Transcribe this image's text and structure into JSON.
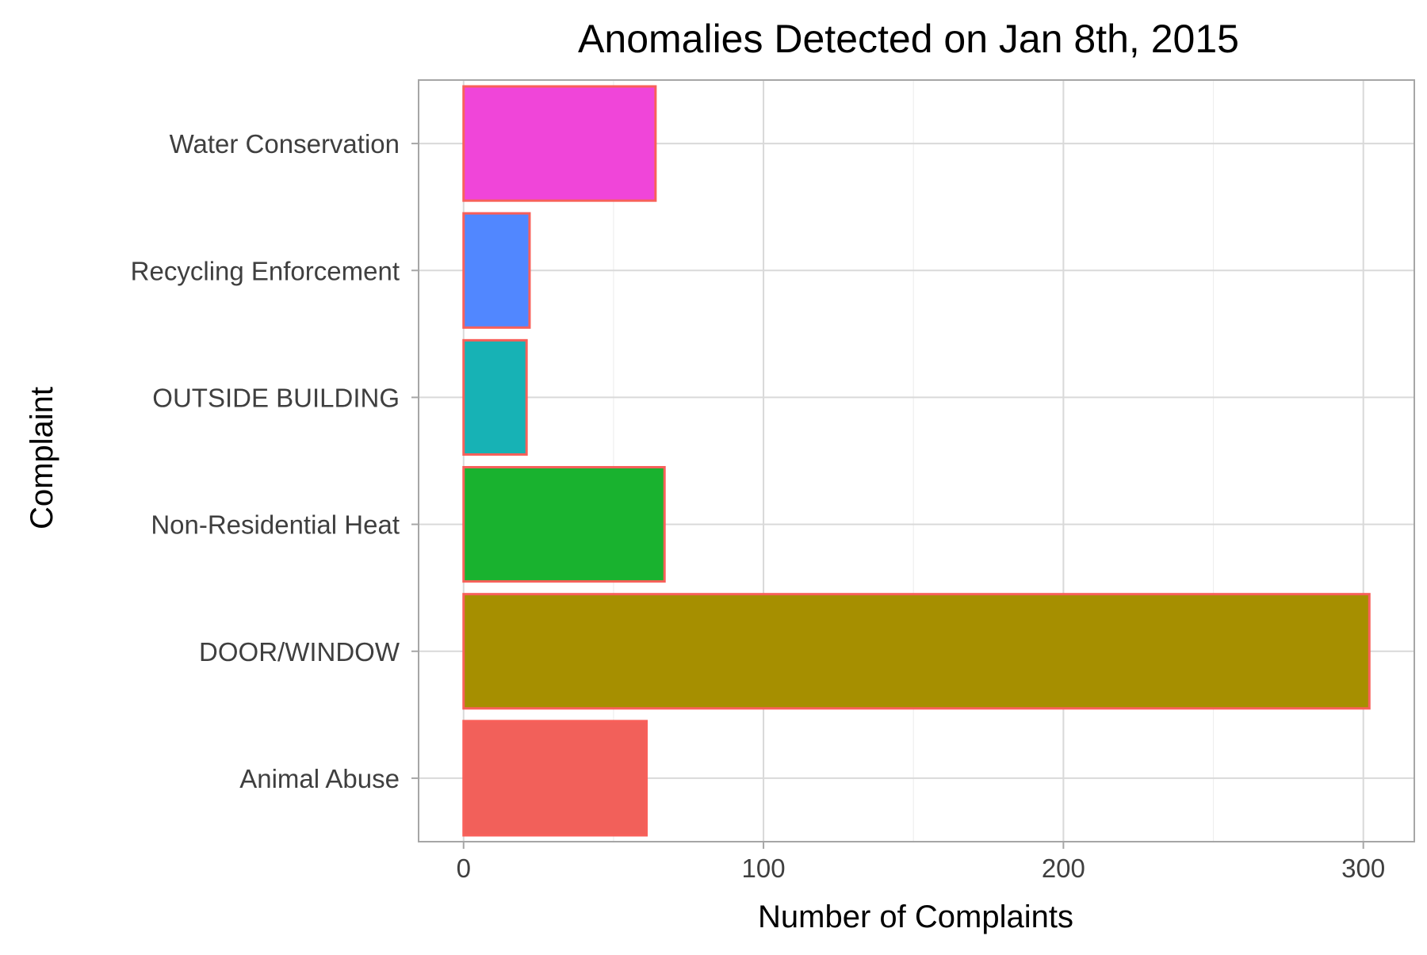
{
  "chart_data": {
    "type": "bar",
    "orientation": "horizontal",
    "title": "Anomalies Detected on Jan 8th, 2015",
    "xlabel": "Number of Complaints",
    "ylabel": "Complaint",
    "categories": [
      "Animal Abuse",
      "DOOR/WINDOW",
      "Non-Residential Heat",
      "OUTSIDE BUILDING",
      "Recycling Enforcement",
      "Water Conservation"
    ],
    "values": [
      61,
      302,
      67,
      21,
      22,
      64
    ],
    "colors": [
      "#F2605A",
      "#A68F00",
      "#19B22F",
      "#17B2B5",
      "#5187FF",
      "#F045D9"
    ],
    "bar_outline_color": "#F8605A",
    "xlim": [
      -15,
      317
    ],
    "xticks": [
      0,
      100,
      200,
      300
    ],
    "xtick_labels": [
      "0",
      "100",
      "200",
      "300"
    ],
    "grid": true,
    "legend": "none"
  }
}
